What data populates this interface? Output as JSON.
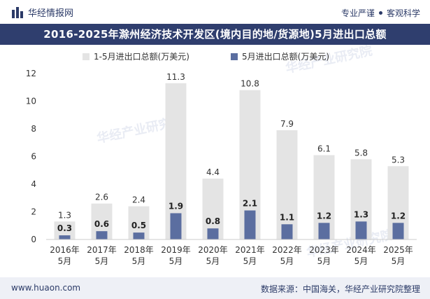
{
  "header": {
    "brand": "华经情报网",
    "tagline_1": "专业严谨",
    "tagline_2": "客观科学",
    "brand_icon": "bar-logo-icon",
    "colors": {
      "navy": "#2f3e6e",
      "text": "#2b3a67"
    }
  },
  "title": "2016-2025年滁州经济技术开发区(境内目的地/货源地)5月进出口总额",
  "watermark": "华经产业研究院",
  "footer": {
    "website": "www.huaon.com",
    "source": "数据来源：中国海关，华经产业研究院整理"
  },
  "chart_data": {
    "type": "bar",
    "categories": [
      "2016年\n5月",
      "2017年\n5月",
      "2018年\n5月",
      "2019年\n5月",
      "2020年\n5月",
      "2021年\n5月",
      "2022年\n5月",
      "2023年\n5月",
      "2024年\n5月",
      "2025年\n5月"
    ],
    "series": [
      {
        "name": "1-5月进出口总额(万美元)",
        "values": [
          1.3,
          2.6,
          2.4,
          11.3,
          4.4,
          10.8,
          7.9,
          6.1,
          5.8,
          5.3
        ],
        "color": "#e4e4e4",
        "label_color": "#333333"
      },
      {
        "name": "5月进出口总额(万美元)",
        "values": [
          0.3,
          0.6,
          0.5,
          1.9,
          0.8,
          2.1,
          1.1,
          1.2,
          1.3,
          1.2
        ],
        "color": "#5b6ea0",
        "label_color": "#222222"
      }
    ],
    "ylim": [
      0,
      12
    ],
    "yticks": [
      0,
      2,
      4,
      6,
      8,
      10,
      12
    ],
    "legend_position": "top-center",
    "grid": false,
    "overlapping_bars": true
  }
}
